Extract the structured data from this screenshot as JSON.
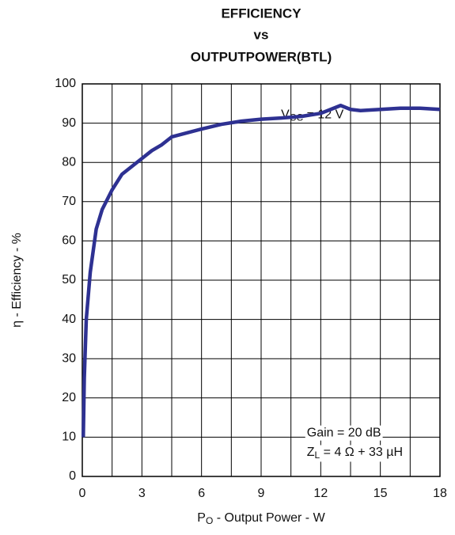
{
  "chart_data": {
    "type": "line",
    "title": [
      "EFFICIENCY",
      "vs",
      "OUTPUTPOWER(BTL)"
    ],
    "x_label": {
      "base": "P",
      "sub": "O",
      "rest": " - Output Power - W"
    },
    "y_label": "η - Efficiency - %",
    "annotations": [
      {
        "base": "V",
        "sub": "CC",
        "rest": " = 12 V",
        "x": 10,
        "y": 92
      },
      {
        "base": "Gain = 20 dB",
        "sub": null,
        "rest": null,
        "x": 11.3,
        "y": 11
      },
      {
        "base": "Z",
        "sub": "L",
        "rest": " = 4 Ω + 33 µH",
        "x": 11.3,
        "y": 6
      }
    ],
    "series": [
      {
        "name": "Efficiency",
        "color": "#2e3192",
        "x": [
          0.05,
          0.1,
          0.2,
          0.4,
          0.7,
          1,
          1.5,
          2,
          3,
          3.5,
          4,
          4.5,
          6,
          7,
          8,
          9,
          10,
          11,
          12,
          12.5,
          13,
          13.5,
          14,
          15,
          16,
          17,
          18
        ],
        "values": [
          10,
          25,
          40,
          52,
          63,
          68,
          73,
          77,
          81,
          83,
          84.5,
          86.5,
          88.5,
          89.7,
          90.5,
          91,
          91.3,
          91.7,
          92.5,
          93.5,
          94.5,
          93.5,
          93.2,
          93.5,
          93.8,
          93.8,
          93.5
        ]
      }
    ],
    "xlim": [
      0,
      18
    ],
    "xticks": [
      0,
      3,
      6,
      9,
      12,
      15,
      18
    ],
    "ylim": [
      0,
      100
    ],
    "yticks": [
      0,
      10,
      20,
      30,
      40,
      50,
      60,
      70,
      80,
      90,
      100
    ],
    "grid": true
  }
}
